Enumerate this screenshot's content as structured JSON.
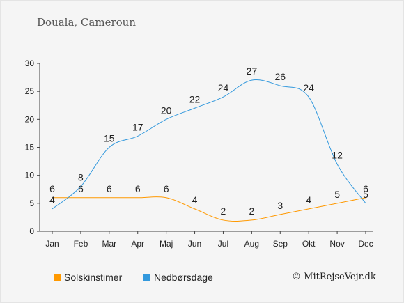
{
  "title": "Douala, Cameroun",
  "credit": "© MitRejseVejr.dk",
  "chart_data": {
    "type": "line",
    "categories": [
      "Jan",
      "Feb",
      "Mar",
      "Apr",
      "Maj",
      "Jun",
      "Jul",
      "Aug",
      "Sep",
      "Okt",
      "Nov",
      "Dec"
    ],
    "ylim": [
      0,
      30
    ],
    "yticks": [
      0,
      5,
      10,
      15,
      20,
      25,
      30
    ],
    "grid": false,
    "legend_position": "bottom",
    "series": [
      {
        "name": "Solskinstimer",
        "color": "#ff9900",
        "values": [
          6,
          6,
          6,
          6,
          6,
          4,
          2,
          2,
          3,
          4,
          5,
          6
        ]
      },
      {
        "name": "Nedbørsdage",
        "color": "#3399dd",
        "values": [
          4,
          8,
          15,
          17,
          20,
          22,
          24,
          27,
          26,
          24,
          12,
          5
        ]
      }
    ]
  }
}
